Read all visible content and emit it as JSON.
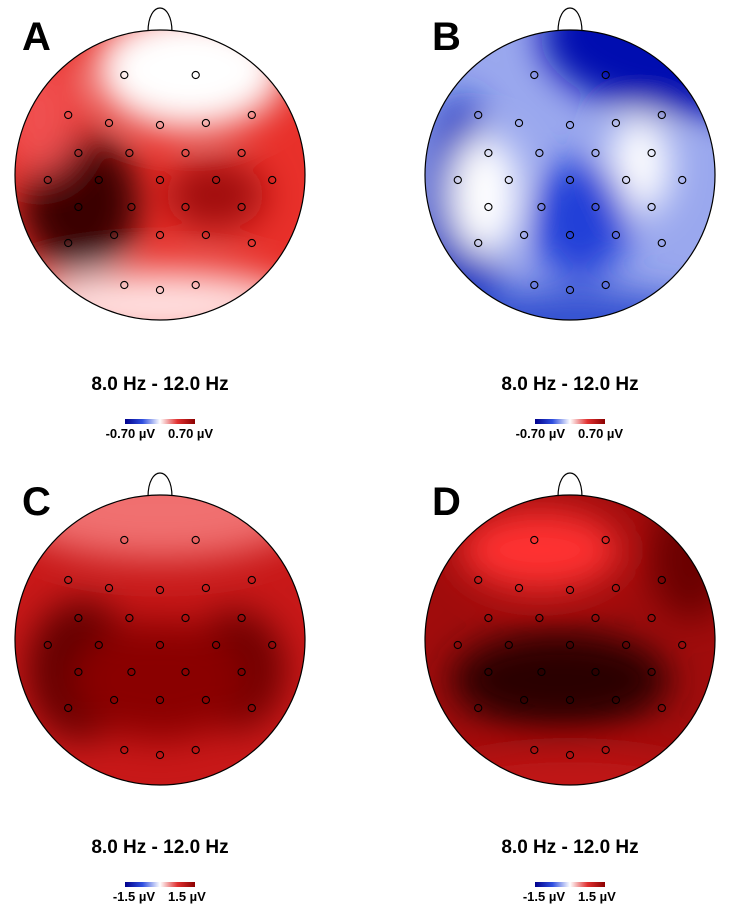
{
  "panels": [
    {
      "label": "A",
      "band": "8.0 Hz - 12.0 Hz",
      "scale_min": "-0.70 µV",
      "scale_max": "0.70 µV"
    },
    {
      "label": "B",
      "band": "8.0 Hz - 12.0 Hz",
      "scale_min": "-0.70 µV",
      "scale_max": "0.70 µV"
    },
    {
      "label": "C",
      "band": "8.0 Hz - 12.0 Hz",
      "scale_min": "-1.5 µV",
      "scale_max": "1.5 µV"
    },
    {
      "label": "D",
      "band": "8.0 Hz - 12.0 Hz",
      "scale_min": "-1.5 µV",
      "scale_max": "1.5 µV"
    }
  ]
}
